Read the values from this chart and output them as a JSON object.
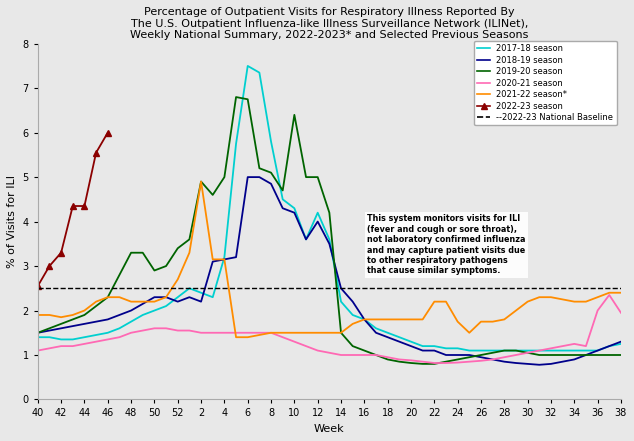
{
  "title": "Percentage of Outpatient Visits for Respiratory Illness Reported By\nThe U.S. Outpatient Influenza-like Illness Surveillance Network (ILINet),\nWeekly National Summary, 2022-2023* and Selected Previous Seasons",
  "xlabel": "Week",
  "ylabel": "% of Visits for ILI",
  "ylim": [
    0,
    8
  ],
  "yticks": [
    0,
    1,
    2,
    3,
    4,
    5,
    6,
    7,
    8
  ],
  "baseline_value": 2.5,
  "note_text": "This system monitors visits for ILI\n(fever and cough or sore throat),\nnot laboratory confirmed influenza\nand may capture patient visits due\nto other respiratory pathogens\nthat cause similar symptoms.",
  "x_tick_labels": [
    "40",
    "42",
    "44",
    "46",
    "48",
    "50",
    "52",
    "2",
    "4",
    "6",
    "8",
    "10",
    "12",
    "14",
    "16",
    "18",
    "20",
    "22",
    "24",
    "26",
    "28",
    "30",
    "32",
    "34",
    "36",
    "38"
  ],
  "tick_weeks": [
    40,
    42,
    44,
    46,
    48,
    50,
    52,
    2,
    4,
    6,
    8,
    10,
    12,
    14,
    16,
    18,
    20,
    22,
    24,
    26,
    28,
    30,
    32,
    34,
    36,
    38
  ],
  "seasons": {
    "2017-18 season": {
      "color": "#00CFCF",
      "linewidth": 1.3,
      "linestyle": "-",
      "marker": null,
      "x": [
        40,
        41,
        42,
        43,
        44,
        45,
        46,
        47,
        48,
        49,
        50,
        51,
        52,
        1,
        2,
        3,
        4,
        5,
        6,
        7,
        8,
        9,
        10,
        11,
        12,
        13,
        14,
        15,
        16,
        17,
        18,
        19,
        20,
        21,
        22,
        23,
        24,
        25,
        26,
        27,
        28,
        29,
        30,
        31,
        32,
        33,
        34,
        35,
        36,
        37,
        38
      ],
      "y": [
        1.4,
        1.4,
        1.35,
        1.35,
        1.4,
        1.45,
        1.5,
        1.6,
        1.75,
        1.9,
        2.0,
        2.1,
        2.3,
        2.5,
        2.4,
        2.3,
        3.2,
        5.75,
        7.5,
        7.35,
        5.8,
        4.5,
        4.3,
        3.6,
        4.2,
        3.6,
        2.2,
        1.9,
        1.8,
        1.6,
        1.5,
        1.4,
        1.3,
        1.2,
        1.2,
        1.15,
        1.15,
        1.1,
        1.1,
        1.1,
        1.1,
        1.1,
        1.1,
        1.1,
        1.1,
        1.1,
        1.1,
        1.1,
        1.1,
        1.2,
        1.25
      ]
    },
    "2018-19 season": {
      "color": "#00008B",
      "linewidth": 1.3,
      "linestyle": "-",
      "marker": null,
      "x": [
        40,
        41,
        42,
        43,
        44,
        45,
        46,
        47,
        48,
        49,
        50,
        51,
        52,
        1,
        2,
        3,
        4,
        5,
        6,
        7,
        8,
        9,
        10,
        11,
        12,
        13,
        14,
        15,
        16,
        17,
        18,
        19,
        20,
        21,
        22,
        23,
        24,
        25,
        26,
        27,
        28,
        29,
        30,
        31,
        32,
        33,
        34,
        35,
        36,
        37,
        38
      ],
      "y": [
        1.5,
        1.55,
        1.6,
        1.65,
        1.7,
        1.75,
        1.8,
        1.9,
        2.0,
        2.15,
        2.3,
        2.3,
        2.2,
        2.3,
        2.2,
        3.1,
        3.15,
        3.2,
        5.0,
        5.0,
        4.85,
        4.3,
        4.2,
        3.6,
        4.0,
        3.5,
        2.5,
        2.2,
        1.8,
        1.5,
        1.4,
        1.3,
        1.2,
        1.1,
        1.1,
        1.0,
        1.0,
        1.0,
        0.95,
        0.9,
        0.85,
        0.82,
        0.8,
        0.78,
        0.8,
        0.85,
        0.9,
        1.0,
        1.1,
        1.2,
        1.3
      ]
    },
    "2019-20 season": {
      "color": "#006400",
      "linewidth": 1.3,
      "linestyle": "-",
      "marker": null,
      "x": [
        40,
        41,
        42,
        43,
        44,
        45,
        46,
        47,
        48,
        49,
        50,
        51,
        52,
        1,
        2,
        3,
        4,
        5,
        6,
        7,
        8,
        9,
        10,
        11,
        12,
        13,
        14,
        15,
        16,
        17,
        18,
        19,
        20,
        21,
        22,
        23,
        24,
        25,
        26,
        27,
        28,
        29,
        30,
        31,
        32,
        33,
        34,
        35,
        36,
        37,
        38
      ],
      "y": [
        1.5,
        1.6,
        1.7,
        1.8,
        1.9,
        2.1,
        2.3,
        2.8,
        3.3,
        3.3,
        2.9,
        3.0,
        3.4,
        3.6,
        4.9,
        4.6,
        5.0,
        6.8,
        6.75,
        5.2,
        5.1,
        4.7,
        6.4,
        5.0,
        5.0,
        4.2,
        1.5,
        1.2,
        1.1,
        1.0,
        0.9,
        0.85,
        0.82,
        0.8,
        0.8,
        0.85,
        0.9,
        0.95,
        1.0,
        1.05,
        1.1,
        1.1,
        1.05,
        1.0,
        1.0,
        1.0,
        1.0,
        1.0,
        1.0,
        1.0,
        1.0
      ]
    },
    "2020-21 season": {
      "color": "#FF69B4",
      "linewidth": 1.3,
      "linestyle": "-",
      "marker": null,
      "x": [
        40,
        41,
        42,
        43,
        44,
        45,
        46,
        47,
        48,
        49,
        50,
        51,
        52,
        1,
        2,
        3,
        4,
        5,
        6,
        7,
        8,
        9,
        10,
        11,
        12,
        13,
        14,
        15,
        16,
        17,
        18,
        19,
        20,
        21,
        22,
        23,
        24,
        25,
        26,
        27,
        28,
        29,
        30,
        31,
        32,
        33,
        34,
        35,
        36,
        37,
        38
      ],
      "y": [
        1.1,
        1.15,
        1.2,
        1.2,
        1.25,
        1.3,
        1.35,
        1.4,
        1.5,
        1.55,
        1.6,
        1.6,
        1.55,
        1.55,
        1.5,
        1.5,
        1.5,
        1.5,
        1.5,
        1.5,
        1.5,
        1.4,
        1.3,
        1.2,
        1.1,
        1.05,
        1.0,
        1.0,
        1.0,
        1.0,
        0.95,
        0.9,
        0.88,
        0.85,
        0.82,
        0.82,
        0.83,
        0.85,
        0.87,
        0.9,
        0.95,
        1.0,
        1.05,
        1.1,
        1.15,
        1.2,
        1.25,
        1.2,
        2.0,
        2.35,
        1.95
      ]
    },
    "2021-22 season*": {
      "color": "#FF8C00",
      "linewidth": 1.3,
      "linestyle": "-",
      "marker": null,
      "x": [
        40,
        41,
        42,
        43,
        44,
        45,
        46,
        47,
        48,
        49,
        50,
        51,
        52,
        1,
        2,
        3,
        4,
        5,
        6,
        7,
        8,
        9,
        10,
        11,
        12,
        13,
        14,
        15,
        16,
        17,
        18,
        19,
        20,
        21,
        22,
        23,
        24,
        25,
        26,
        27,
        28,
        29,
        30,
        31,
        32,
        33,
        34,
        35,
        36,
        37,
        38
      ],
      "y": [
        1.9,
        1.9,
        1.85,
        1.9,
        2.0,
        2.2,
        2.3,
        2.3,
        2.2,
        2.2,
        2.2,
        2.3,
        2.7,
        3.3,
        4.9,
        3.15,
        3.15,
        1.4,
        1.4,
        1.45,
        1.5,
        1.5,
        1.5,
        1.5,
        1.5,
        1.5,
        1.5,
        1.7,
        1.8,
        1.8,
        1.8,
        1.8,
        1.8,
        1.8,
        2.2,
        2.2,
        1.75,
        1.5,
        1.75,
        1.75,
        1.8,
        2.0,
        2.2,
        2.3,
        2.3,
        2.25,
        2.2,
        2.2,
        2.3,
        2.4,
        2.4
      ]
    },
    "2022-23 season": {
      "color": "#8B0000",
      "linewidth": 1.3,
      "linestyle": "-",
      "marker": "^",
      "markersize": 5,
      "x": [
        40,
        41,
        42,
        43,
        44,
        45,
        46
      ],
      "y": [
        2.55,
        3.0,
        3.3,
        4.35,
        4.35,
        5.55,
        6.0
      ]
    }
  },
  "legend_entries": [
    {
      "label": "2017-18 season",
      "color": "#00CFCF",
      "linestyle": "-",
      "marker": null
    },
    {
      "label": "2018-19 season",
      "color": "#00008B",
      "linestyle": "-",
      "marker": null
    },
    {
      "label": "2019-20 season",
      "color": "#006400",
      "linestyle": "-",
      "marker": null
    },
    {
      "label": "2020-21 season",
      "color": "#FF69B4",
      "linestyle": "-",
      "marker": null
    },
    {
      "label": "2021-22 season*",
      "color": "#FF8C00",
      "linestyle": "-",
      "marker": null
    },
    {
      "label": "2022-23 season",
      "color": "#8B0000",
      "linestyle": "-",
      "marker": "^"
    },
    {
      "label": "--2022-23 National Baseline",
      "color": "#000000",
      "linestyle": "--",
      "marker": null
    }
  ],
  "bg_color": "#e8e8e8",
  "fig_bg_color": "#e8e8e8"
}
